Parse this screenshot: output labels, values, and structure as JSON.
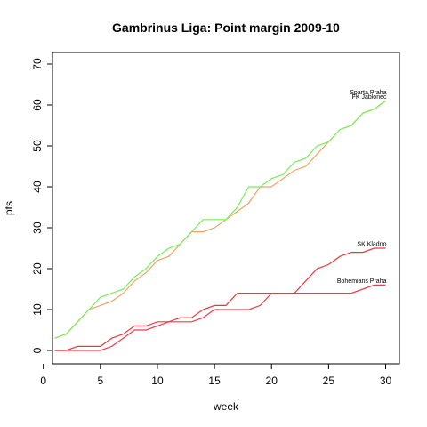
{
  "chart_data": {
    "type": "line",
    "title": "Gambrinus Liga: Point margin 2009-10",
    "xlabel": "week",
    "ylabel": "pts",
    "xlim": [
      0,
      31
    ],
    "ylim": [
      0,
      72
    ],
    "xticks": [
      0,
      5,
      10,
      15,
      20,
      25,
      30
    ],
    "yticks": [
      0,
      10,
      20,
      30,
      40,
      50,
      60,
      70
    ],
    "grid": false,
    "legend": "none",
    "series": [
      {
        "name": "Sparta Praha",
        "color": "#78ee5a",
        "x": [
          1,
          2,
          3,
          4,
          5,
          6,
          7,
          8,
          9,
          10,
          11,
          12,
          13,
          14,
          15,
          16,
          17,
          18,
          19,
          20,
          21,
          22,
          23,
          24,
          25,
          26,
          27,
          28,
          29,
          30
        ],
        "values": [
          3,
          4,
          7,
          10,
          13,
          14,
          15,
          18,
          20,
          23,
          25,
          26,
          29,
          32,
          32,
          32,
          35,
          40,
          40,
          42,
          43,
          46,
          47,
          50,
          51,
          54,
          55,
          58,
          59,
          61
        ]
      },
      {
        "name": "FK Jablonec",
        "color": "#f0a466",
        "x": [
          1,
          2,
          3,
          4,
          5,
          6,
          7,
          8,
          9,
          10,
          11,
          12,
          13,
          14,
          15,
          16,
          17,
          18,
          19,
          20,
          21,
          22,
          23,
          24,
          25,
          26,
          27,
          28,
          29,
          30
        ],
        "values": [
          3,
          4,
          7,
          10,
          11,
          12,
          14,
          17,
          19,
          22,
          23,
          26,
          29,
          29,
          30,
          32,
          34,
          36,
          40,
          40,
          42,
          44,
          45,
          48,
          51,
          54,
          55,
          58,
          59,
          61
        ]
      },
      {
        "name": "SK Kladno",
        "color": "#f0383c",
        "x": [
          1,
          2,
          3,
          4,
          5,
          6,
          7,
          8,
          9,
          10,
          11,
          12,
          13,
          14,
          15,
          16,
          17,
          18,
          19,
          20,
          21,
          22,
          23,
          24,
          25,
          26,
          27,
          28,
          29,
          30
        ],
        "values": [
          0,
          0,
          1,
          1,
          1,
          3,
          4,
          6,
          6,
          7,
          7,
          8,
          8,
          10,
          11,
          11,
          14,
          14,
          14,
          14,
          14,
          14,
          17,
          20,
          21,
          23,
          24,
          24,
          25,
          25
        ]
      },
      {
        "name": "Bohemians Praha",
        "color": "#f03c4a",
        "x": [
          1,
          2,
          3,
          4,
          5,
          6,
          7,
          8,
          9,
          10,
          11,
          12,
          13,
          14,
          15,
          16,
          17,
          18,
          19,
          20,
          21,
          22,
          23,
          24,
          25,
          26,
          27,
          28,
          29,
          30
        ],
        "values": [
          0,
          0,
          0,
          0,
          0,
          1,
          3,
          5,
          5,
          6,
          7,
          7,
          7,
          8,
          10,
          10,
          10,
          10,
          11,
          14,
          14,
          14,
          14,
          14,
          14,
          14,
          14,
          15,
          16,
          16
        ]
      }
    ],
    "annotations": [
      {
        "text": "Sparta Praha",
        "x": 30,
        "y": 63
      },
      {
        "text": "FK Jablonec",
        "x": 30,
        "y": 62
      },
      {
        "text": "SK Kladno",
        "x": 30,
        "y": 26
      },
      {
        "text": "Bohemians Praha",
        "x": 30,
        "y": 17
      }
    ]
  }
}
